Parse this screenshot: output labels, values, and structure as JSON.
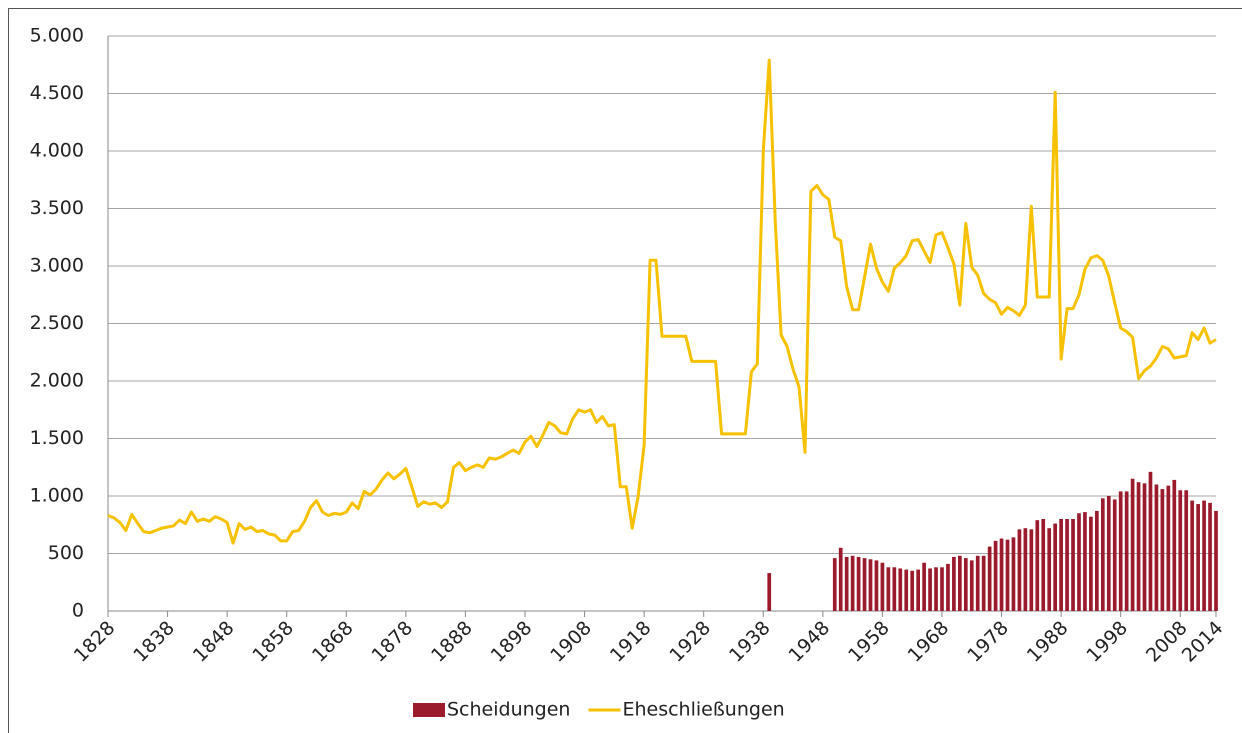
{
  "chart_data": {
    "type": "bar_line",
    "x": [
      1828,
      1829,
      1830,
      1831,
      1832,
      1833,
      1834,
      1835,
      1836,
      1837,
      1838,
      1839,
      1840,
      1841,
      1842,
      1843,
      1844,
      1845,
      1846,
      1847,
      1848,
      1849,
      1850,
      1851,
      1852,
      1853,
      1854,
      1855,
      1856,
      1857,
      1858,
      1859,
      1860,
      1861,
      1862,
      1863,
      1864,
      1865,
      1866,
      1867,
      1868,
      1869,
      1870,
      1871,
      1872,
      1873,
      1874,
      1875,
      1876,
      1877,
      1878,
      1879,
      1880,
      1881,
      1882,
      1883,
      1884,
      1885,
      1886,
      1887,
      1888,
      1889,
      1890,
      1891,
      1892,
      1893,
      1894,
      1895,
      1896,
      1897,
      1898,
      1899,
      1900,
      1901,
      1902,
      1903,
      1904,
      1905,
      1906,
      1907,
      1908,
      1909,
      1910,
      1911,
      1912,
      1913,
      1914,
      1915,
      1916,
      1917,
      1918,
      1919,
      1920,
      1921,
      1922,
      1923,
      1924,
      1925,
      1926,
      1927,
      1928,
      1929,
      1930,
      1931,
      1932,
      1933,
      1934,
      1935,
      1936,
      1937,
      1938,
      1939,
      1940,
      1941,
      1942,
      1943,
      1944,
      1945,
      1946,
      1947,
      1948,
      1949,
      1950,
      1951,
      1952,
      1953,
      1954,
      1955,
      1956,
      1957,
      1958,
      1959,
      1960,
      1961,
      1962,
      1963,
      1964,
      1965,
      1966,
      1967,
      1968,
      1969,
      1970,
      1971,
      1972,
      1973,
      1974,
      1975,
      1976,
      1977,
      1978,
      1979,
      1980,
      1981,
      1982,
      1983,
      1984,
      1985,
      1986,
      1987,
      1988,
      1989,
      1990,
      1991,
      1992,
      1993,
      1994,
      1995,
      1996,
      1997,
      1998,
      1999,
      2000,
      2001,
      2002,
      2003,
      2004,
      2005,
      2006,
      2007,
      2008,
      2009,
      2010,
      2011,
      2012,
      2013,
      2014
    ],
    "xlim": [
      1828,
      2014
    ],
    "xticks": [
      1828,
      1838,
      1848,
      1858,
      1868,
      1878,
      1888,
      1898,
      1908,
      1918,
      1928,
      1938,
      1948,
      1958,
      1968,
      1978,
      1988,
      1998,
      2008,
      2014
    ],
    "ylim": [
      0,
      5000
    ],
    "yticks": [
      0,
      500,
      {
        "value": 1000,
        "label": "1.000"
      },
      {
        "value": 1500,
        "label": "1.500"
      },
      {
        "value": 2000,
        "label": "2.000"
      },
      {
        "value": 2500,
        "label": "2.500"
      },
      {
        "value": 3000,
        "label": "3.000"
      },
      {
        "value": 3500,
        "label": "3.500"
      },
      {
        "value": 4000,
        "label": "4.000"
      },
      {
        "value": 4500,
        "label": "4.500"
      },
      {
        "value": 5000,
        "label": "5.000"
      }
    ],
    "grid": true,
    "legend": "bottom",
    "series": [
      {
        "name": "Scheidungen",
        "type": "bar",
        "color": "#9b1b2d",
        "values": [
          null,
          null,
          null,
          null,
          null,
          null,
          null,
          null,
          null,
          null,
          null,
          null,
          null,
          null,
          null,
          null,
          null,
          null,
          null,
          null,
          null,
          null,
          null,
          null,
          null,
          null,
          null,
          null,
          null,
          null,
          null,
          null,
          null,
          null,
          null,
          null,
          null,
          null,
          null,
          null,
          null,
          null,
          null,
          null,
          null,
          null,
          null,
          null,
          null,
          null,
          null,
          null,
          null,
          null,
          null,
          null,
          null,
          null,
          null,
          null,
          null,
          null,
          null,
          null,
          null,
          null,
          null,
          null,
          null,
          null,
          null,
          null,
          null,
          null,
          null,
          null,
          null,
          null,
          null,
          null,
          null,
          null,
          null,
          null,
          null,
          null,
          null,
          null,
          null,
          null,
          null,
          null,
          null,
          null,
          null,
          null,
          null,
          null,
          null,
          null,
          null,
          null,
          null,
          null,
          null,
          null,
          null,
          null,
          null,
          null,
          null,
          330,
          null,
          null,
          null,
          null,
          null,
          null,
          null,
          null,
          null,
          null,
          460,
          550,
          470,
          480,
          470,
          460,
          450,
          440,
          420,
          380,
          380,
          370,
          360,
          350,
          360,
          420,
          370,
          380,
          380,
          410,
          470,
          480,
          460,
          440,
          480,
          480,
          560,
          610,
          630,
          620,
          640,
          710,
          720,
          710,
          790,
          800,
          720,
          760,
          800,
          800,
          800,
          850,
          860,
          820,
          870,
          980,
          1000,
          970,
          1040,
          1040,
          1150,
          1120,
          1110,
          1210,
          1100,
          1060,
          1090,
          1140,
          1050,
          1050,
          960,
          930,
          960,
          940,
          870
        ]
      },
      {
        "name": "Eheschließungen",
        "type": "line",
        "color": "#f5c100",
        "values": [
          830,
          810,
          770,
          700,
          840,
          760,
          690,
          680,
          700,
          720,
          730,
          740,
          790,
          760,
          860,
          780,
          800,
          780,
          820,
          800,
          770,
          590,
          760,
          710,
          730,
          690,
          700,
          670,
          660,
          610,
          610,
          690,
          700,
          780,
          900,
          960,
          860,
          830,
          850,
          840,
          860,
          940,
          890,
          1040,
          1010,
          1060,
          1140,
          1200,
          1150,
          1190,
          1240,
          1080,
          910,
          950,
          930,
          940,
          900,
          950,
          1250,
          1290,
          1220,
          1250,
          1270,
          1250,
          1330,
          1320,
          1340,
          1370,
          1400,
          1370,
          1470,
          1520,
          1430,
          1530,
          1640,
          1610,
          1550,
          1540,
          1670,
          1750,
          1730,
          1750,
          1640,
          1690,
          1610,
          1620,
          1080,
          1080,
          720,
          1000,
          1440,
          3050,
          3050,
          2390,
          2390,
          2390,
          2390,
          2390,
          2170,
          2170,
          2170,
          2170,
          2170,
          1540,
          1540,
          1540,
          1540,
          1540,
          2080,
          2150,
          4000,
          4790,
          3400,
          2400,
          2300,
          2100,
          1950,
          1380,
          3650,
          3700,
          3620,
          3580,
          3250,
          3220,
          2820,
          2620,
          2620,
          2900,
          3190,
          2980,
          2860,
          2780,
          2980,
          3030,
          3090,
          3220,
          3230,
          3130,
          3030,
          3270,
          3290,
          3160,
          3020,
          2660,
          3370,
          2990,
          2920,
          2760,
          2710,
          2680,
          2580,
          2640,
          2610,
          2570,
          2660,
          3520,
          2730,
          2730,
          2730,
          4510,
          2190,
          2630,
          2630,
          2750,
          2970,
          3070,
          3090,
          3050,
          2910,
          2680,
          2460,
          2430,
          2380,
          2020,
          2090,
          2130,
          2200,
          2300,
          2280,
          2200,
          2210,
          2220,
          2420,
          2360,
          2460,
          2330,
          2360
        ]
      }
    ]
  }
}
